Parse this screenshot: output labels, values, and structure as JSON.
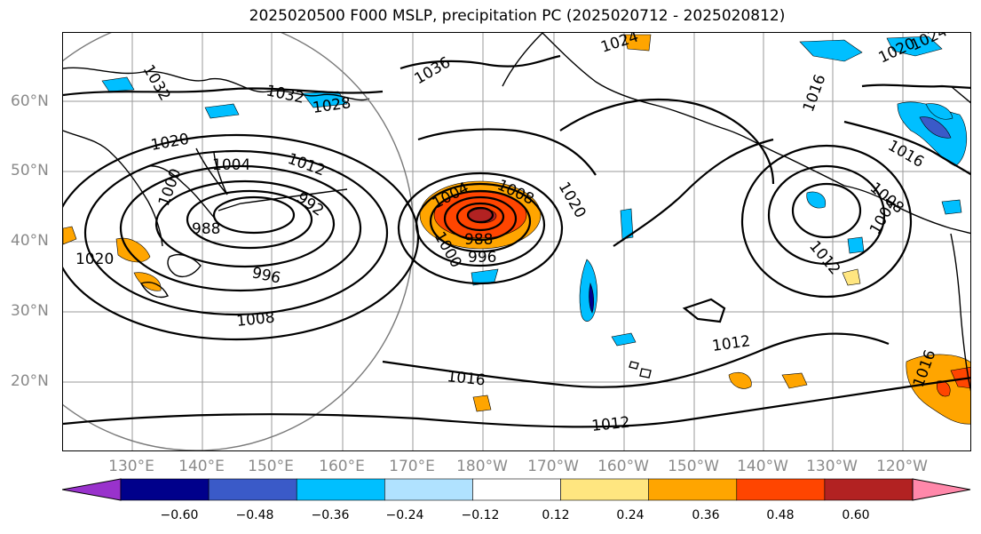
{
  "title": "2025020500 F000 MSLP, precipitation PC (2025020712 - 2025020812)",
  "lat_labels": [
    "60°N",
    "50°N",
    "40°N",
    "30°N",
    "20°N"
  ],
  "lon_labels": [
    "130°E",
    "140°E",
    "150°E",
    "160°E",
    "170°E",
    "180°W",
    "170°W",
    "160°W",
    "150°W",
    "140°W",
    "130°W",
    "120°W"
  ],
  "colorbar": {
    "ticks": [
      "−0.60",
      "−0.48",
      "−0.36",
      "−0.24",
      "−0.12",
      "0.12",
      "0.24",
      "0.36",
      "0.48",
      "0.60"
    ],
    "colors": [
      "#9932cc",
      "#00008b",
      "#3a5ac8",
      "#00bfff",
      "#b0e2ff",
      "#ffffff",
      "#ffe680",
      "#ffa500",
      "#ff4500",
      "#b22222",
      "#ff88aa"
    ]
  },
  "isobar_labels": [
    "1032",
    "1032",
    "1028",
    "1020",
    "1004",
    "1012",
    "1000",
    "992",
    "988",
    "996",
    "1008",
    "1020",
    "1004",
    "1008",
    "1000",
    "996",
    "988",
    "1020",
    "1036",
    "1024",
    "1016",
    "1012",
    "1012",
    "1016",
    "1012",
    "1016",
    "1008",
    "1004",
    "1016",
    "1020",
    "1024"
  ]
}
